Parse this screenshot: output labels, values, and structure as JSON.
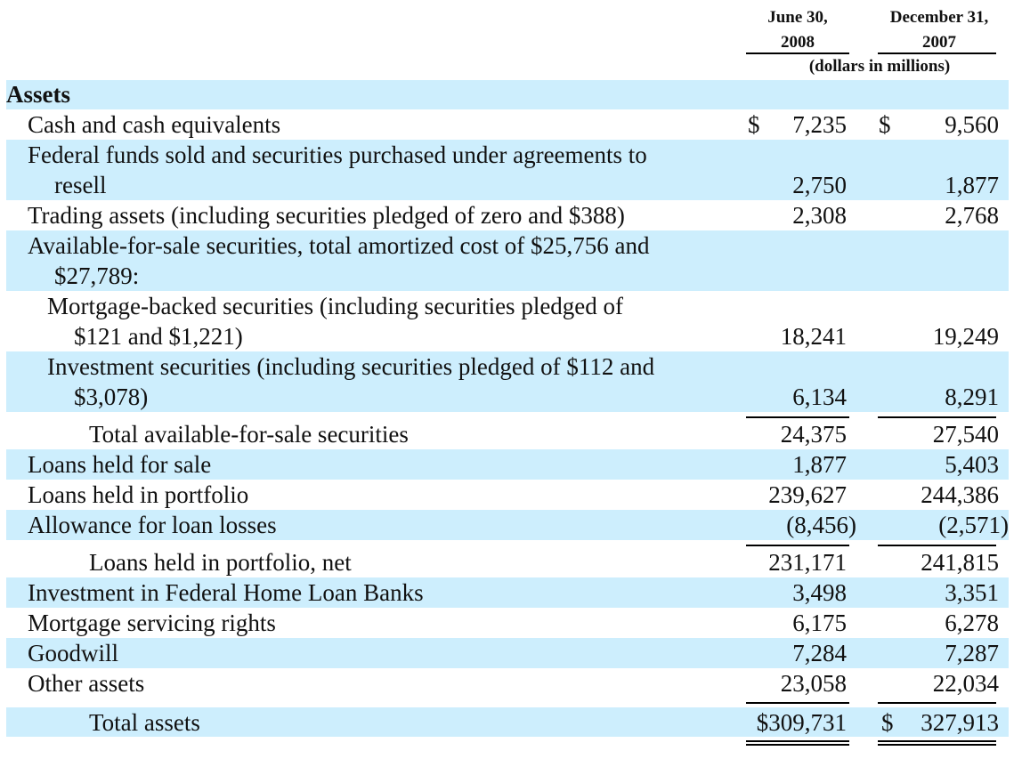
{
  "columns": {
    "col1": "June 30,\n2008",
    "col2": "December 31,\n2007",
    "unit_note": "(dollars in millions)"
  },
  "section_title": "Assets",
  "rows": [
    {
      "label": "Cash and cash equivalents",
      "v1": "7,235",
      "v2": "9,560",
      "dollar1": "$",
      "dollar2": "$"
    },
    {
      "label": "Federal funds sold and securities purchased under agreements to",
      "label2": "resell",
      "v1": "2,750",
      "v2": "1,877"
    },
    {
      "label": "Trading assets (including securities pledged of zero and $388)",
      "v1": "2,308",
      "v2": "2,768"
    },
    {
      "label": "Available-for-sale securities, total amortized cost of $25,756 and",
      "label2": "$27,789:",
      "v1": "",
      "v2": ""
    },
    {
      "label": "Mortgage-backed securities (including securities pledged of",
      "label2": "$121 and $1,221)",
      "v1": "18,241",
      "v2": "19,249"
    },
    {
      "label": "Investment securities (including securities pledged of $112 and",
      "label2": "$3,078)",
      "v1": "6,134",
      "v2": "8,291"
    },
    {
      "label": "Total available-for-sale securities",
      "v1": "24,375",
      "v2": "27,540"
    },
    {
      "label": "Loans held for sale",
      "v1": "1,877",
      "v2": "5,403"
    },
    {
      "label": "Loans held in portfolio",
      "v1": "239,627",
      "v2": "244,386"
    },
    {
      "label": "Allowance for loan losses",
      "v1": "(8,456)",
      "v2": "(2,571)"
    },
    {
      "label": "Loans held in portfolio, net",
      "v1": "231,171",
      "v2": "241,815"
    },
    {
      "label": "Investment in Federal Home Loan Banks",
      "v1": "3,498",
      "v2": "3,351"
    },
    {
      "label": "Mortgage servicing rights",
      "v1": "6,175",
      "v2": "6,278"
    },
    {
      "label": "Goodwill",
      "v1": "7,284",
      "v2": "7,287"
    },
    {
      "label": "Other assets",
      "v1": "23,058",
      "v2": "22,034"
    },
    {
      "label": "Total assets",
      "v1": "$309,731",
      "v2": "327,913",
      "dollar2": "$"
    }
  ]
}
